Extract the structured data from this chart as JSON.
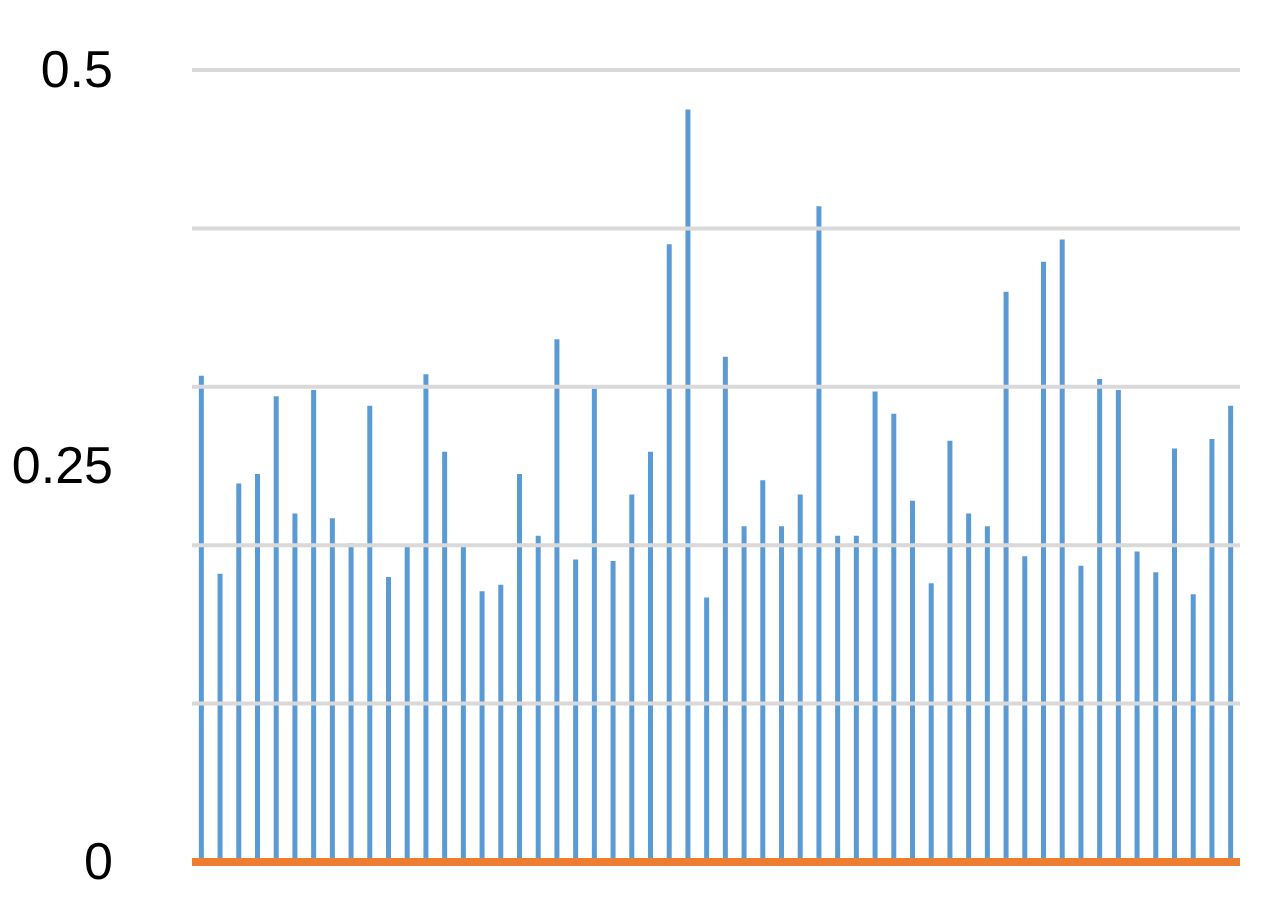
{
  "chart_data": {
    "type": "bar",
    "categories": [
      null,
      null,
      null,
      null,
      null,
      null,
      null,
      null,
      null,
      null,
      null,
      null,
      null,
      null,
      null,
      null,
      null,
      null,
      null,
      null,
      null,
      null,
      null,
      null,
      null,
      null,
      null,
      null,
      null,
      null,
      null,
      null,
      null,
      null,
      null,
      null,
      null,
      null,
      null,
      null,
      null,
      null,
      null,
      null,
      null,
      null,
      null,
      null,
      null,
      null,
      null,
      null,
      null,
      null,
      null,
      null
    ],
    "values": [
      0.307,
      0.182,
      0.239,
      0.245,
      0.294,
      0.22,
      0.298,
      0.217,
      0.201,
      0.288,
      0.18,
      0.2,
      0.308,
      0.259,
      0.2,
      0.171,
      0.175,
      0.245,
      0.206,
      0.33,
      0.191,
      0.299,
      0.19,
      0.232,
      0.259,
      0.39,
      0.475,
      0.167,
      0.319,
      0.212,
      0.241,
      0.212,
      0.232,
      0.414,
      0.206,
      0.206,
      0.297,
      0.283,
      0.228,
      0.176,
      0.266,
      0.22,
      0.212,
      0.36,
      0.193,
      0.379,
      0.393,
      0.187,
      0.305,
      0.298,
      0.196,
      0.183,
      0.261,
      0.169,
      0.267,
      0.288
    ],
    "color": "#5b9bd5",
    "ylim": [
      0,
      0.5
    ],
    "yticks": [
      0,
      {
        "value": 0.1,
        "label": null
      },
      {
        "value": 0.2,
        "label": null
      },
      0.25,
      {
        "value": 0.3,
        "label": null
      },
      {
        "value": 0.4,
        "label": null
      },
      0.5
    ],
    "grid": "y",
    "tick_labels": "y",
    "ref_lines": [
      {
        "axis": "y",
        "value": 0,
        "color": "#ed7d31"
      }
    ]
  }
}
